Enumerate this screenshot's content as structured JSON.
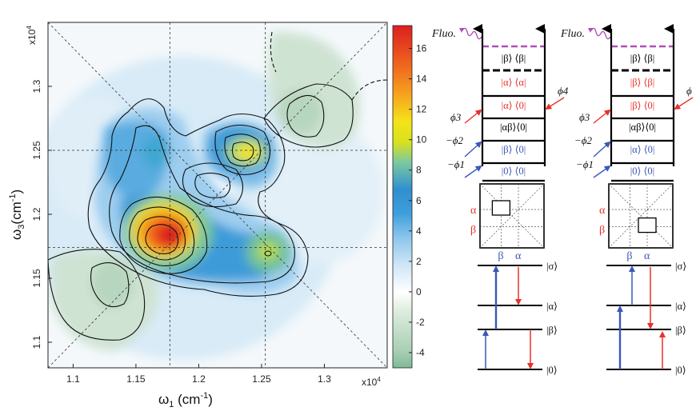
{
  "colors": {
    "red": "#e8302a",
    "blue": "#3b57b8",
    "black": "#000000",
    "magenta": "#b04fb6"
  },
  "chart_data": {
    "type": "heatmap",
    "xlabel": "ω1 (cm⁻¹)",
    "ylabel": "ω3(cm⁻¹)",
    "x_multiplier": "x10^4",
    "y_multiplier": "x10^4",
    "xlim": [
      1.08,
      1.35
    ],
    "ylim": [
      1.08,
      1.35
    ],
    "x_ticks": [
      "1.1",
      "1.15",
      "1.2",
      "1.25",
      "1.3"
    ],
    "y_ticks": [
      "1.1",
      "1.15",
      "1.2",
      "1.25",
      "1.3"
    ],
    "colorbar_ticks": [
      "-4",
      "-2",
      "0",
      "2",
      "4",
      "6",
      "8",
      "10",
      "12",
      "14",
      "16"
    ],
    "colorbar_range": [
      -5,
      17.5
    ],
    "reference_lines": {
      "x": [
        1.177,
        1.253
      ],
      "y": [
        1.174,
        1.25
      ]
    },
    "peaks": [
      {
        "x": 1.178,
        "y": 1.18,
        "value": 17,
        "sign": "positive"
      },
      {
        "x": 1.244,
        "y": 1.243,
        "value": 11,
        "sign": "positive"
      },
      {
        "x": 1.252,
        "y": 1.168,
        "value": 8,
        "sign": "positive"
      },
      {
        "x": 1.168,
        "y": 1.245,
        "value": 6,
        "sign": "positive"
      },
      {
        "x": 1.215,
        "y": 1.22,
        "value": -1.5,
        "sign": "negative"
      },
      {
        "x": 1.14,
        "y": 1.145,
        "value": -3,
        "sign": "negative"
      },
      {
        "x": 1.29,
        "y": 1.27,
        "value": -3,
        "sign": "negative"
      }
    ]
  },
  "diagrams": [
    {
      "fluo_label": "Fluo.",
      "ladder": [
        {
          "label": "|β⟩ ⟨β|",
          "color": "black"
        },
        {
          "label": "|α⟩ ⟨α|",
          "color": "red"
        },
        {
          "label": "|α⟩ ⟨0|",
          "color": "red"
        },
        {
          "label": "|αβ⟩⟨0|",
          "color": "black"
        },
        {
          "label": "|β⟩ ⟨0|",
          "color": "blue"
        },
        {
          "label": "|0⟩ ⟨0|",
          "color": "blue"
        }
      ],
      "phases": [
        "ϕ4",
        "ϕ3",
        "−ϕ2",
        "−ϕ1"
      ],
      "map_labels": {
        "y1": "α",
        "y2": "β",
        "x1": "β",
        "x2": "α"
      },
      "levels": [
        "|σ⟩",
        "|α⟩",
        "|β⟩",
        "|0⟩"
      ]
    },
    {
      "fluo_label": "Fluo.",
      "ladder": [
        {
          "label": "|β⟩ ⟨β|",
          "color": "black"
        },
        {
          "label": "|β⟩ ⟨β|",
          "color": "red"
        },
        {
          "label": "|β⟩ ⟨0|",
          "color": "red"
        },
        {
          "label": "|αβ⟩⟨0|",
          "color": "black"
        },
        {
          "label": "|α⟩ ⟨0|",
          "color": "blue"
        },
        {
          "label": "|0⟩ ⟨0|",
          "color": "blue"
        }
      ],
      "phases": [
        "ϕ",
        "ϕ3",
        "−ϕ2",
        "−ϕ1"
      ],
      "map_labels": {
        "y1": "α",
        "y2": "β",
        "x1": "β",
        "x2": "α"
      },
      "levels": [
        "|σ⟩",
        "|α⟩",
        "|β⟩",
        "|0⟩"
      ]
    }
  ]
}
